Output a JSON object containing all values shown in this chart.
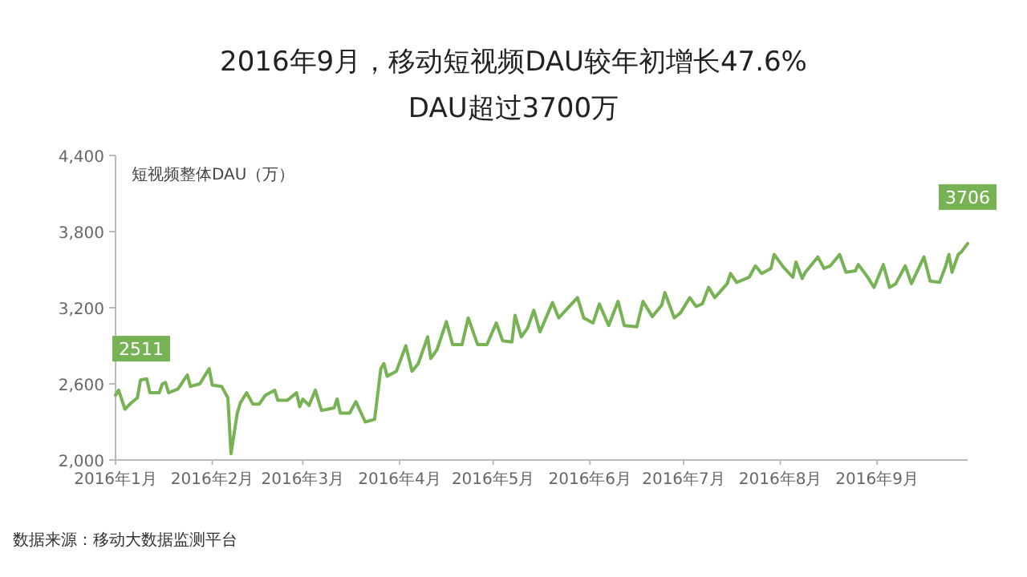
{
  "chart_data": {
    "type": "line",
    "title": "2016年9月，移动短视频DAU较年初增长47.6%",
    "subtitle": "DAU超过3700万",
    "ylabel": "短视频整体DAU（万）",
    "annotations": [
      "数据来源：移动大数据监测平台"
    ],
    "xlim": [
      "2016-01-01",
      "2016-09-30"
    ],
    "xticks": [
      {
        "value": "2016-01-01",
        "label": "2016年1月"
      },
      {
        "value": "2016-02-01",
        "label": "2016年2月"
      },
      {
        "value": "2016-03-01",
        "label": "2016年3月"
      },
      {
        "value": "2016-04-01",
        "label": "2016年4月"
      },
      {
        "value": "2016-05-01",
        "label": "2016年5月"
      },
      {
        "value": "2016-06-01",
        "label": "2016年6月"
      },
      {
        "value": "2016-07-01",
        "label": "2016年7月"
      },
      {
        "value": "2016-08-01",
        "label": "2016年8月"
      },
      {
        "value": "2016-09-01",
        "label": "2016年9月"
      }
    ],
    "ylim": [
      2000,
      4400
    ],
    "yticks": [
      {
        "value": 2000,
        "label": "2,000"
      },
      {
        "value": 2600,
        "label": "2,600"
      },
      {
        "value": 3200,
        "label": "3,200"
      },
      {
        "value": 3800,
        "label": "3,800"
      },
      {
        "value": 4400,
        "label": "4,400"
      }
    ],
    "grid": false,
    "marker": "none",
    "line_style": "solid",
    "series": [
      {
        "color": "#77b255",
        "x": [
          "2016-01-01",
          "2016-01-02",
          "2016-01-04",
          "2016-01-06",
          "2016-01-08",
          "2016-01-09",
          "2016-01-11",
          "2016-01-12",
          "2016-01-15",
          "2016-01-16",
          "2016-01-17",
          "2016-01-18",
          "2016-01-21",
          "2016-01-24",
          "2016-01-25",
          "2016-01-28",
          "2016-01-31",
          "2016-02-01",
          "2016-02-04",
          "2016-02-06",
          "2016-02-07",
          "2016-02-09",
          "2016-02-10",
          "2016-02-12",
          "2016-02-14",
          "2016-02-16",
          "2016-02-18",
          "2016-02-21",
          "2016-02-22",
          "2016-02-25",
          "2016-02-28",
          "2016-02-29",
          "2016-03-01",
          "2016-03-03",
          "2016-03-05",
          "2016-03-07",
          "2016-03-11",
          "2016-03-12",
          "2016-03-13",
          "2016-03-16",
          "2016-03-18",
          "2016-03-21",
          "2016-03-24",
          "2016-03-26",
          "2016-03-27",
          "2016-03-28",
          "2016-03-31",
          "2016-04-03",
          "2016-04-05",
          "2016-04-07",
          "2016-04-10",
          "2016-04-11",
          "2016-04-13",
          "2016-04-16",
          "2016-04-18",
          "2016-04-21",
          "2016-04-23",
          "2016-04-26",
          "2016-04-29",
          "2016-05-02",
          "2016-05-04",
          "2016-05-07",
          "2016-05-08",
          "2016-05-10",
          "2016-05-12",
          "2016-05-14",
          "2016-05-16",
          "2016-05-20",
          "2016-05-22",
          "2016-05-28",
          "2016-05-30",
          "2016-06-02",
          "2016-06-04",
          "2016-06-07",
          "2016-06-10",
          "2016-06-12",
          "2016-06-16",
          "2016-06-18",
          "2016-06-21",
          "2016-06-24",
          "2016-06-25",
          "2016-06-28",
          "2016-06-30",
          "2016-07-03",
          "2016-07-05",
          "2016-07-07",
          "2016-07-09",
          "2016-07-11",
          "2016-07-15",
          "2016-07-16",
          "2016-07-18",
          "2016-07-22",
          "2016-07-24",
          "2016-07-26",
          "2016-07-29",
          "2016-07-30",
          "2016-08-02",
          "2016-08-05",
          "2016-08-06",
          "2016-08-08",
          "2016-08-09",
          "2016-08-13",
          "2016-08-15",
          "2016-08-17",
          "2016-08-20",
          "2016-08-22",
          "2016-08-25",
          "2016-08-26",
          "2016-08-29",
          "2016-08-31",
          "2016-09-03",
          "2016-09-05",
          "2016-09-07",
          "2016-09-10",
          "2016-09-12",
          "2016-09-16",
          "2016-09-18",
          "2016-09-21",
          "2016-09-23",
          "2016-09-24",
          "2016-09-25",
          "2016-09-27",
          "2016-09-28",
          "2016-09-30"
        ],
        "values": [
          2511,
          2550,
          2400,
          2450,
          2490,
          2630,
          2640,
          2530,
          2530,
          2600,
          2610,
          2530,
          2560,
          2670,
          2580,
          2600,
          2720,
          2590,
          2580,
          2490,
          2050,
          2370,
          2450,
          2530,
          2440,
          2440,
          2510,
          2550,
          2470,
          2470,
          2530,
          2420,
          2480,
          2430,
          2550,
          2390,
          2410,
          2480,
          2370,
          2370,
          2460,
          2300,
          2320,
          2720,
          2760,
          2660,
          2700,
          2900,
          2700,
          2760,
          2970,
          2800,
          2870,
          3090,
          2910,
          2910,
          3120,
          2910,
          2910,
          3080,
          2940,
          2930,
          3140,
          2970,
          3040,
          3180,
          3010,
          3240,
          3120,
          3280,
          3120,
          3080,
          3230,
          3060,
          3250,
          3060,
          3050,
          3250,
          3130,
          3220,
          3320,
          3120,
          3160,
          3280,
          3210,
          3230,
          3360,
          3280,
          3390,
          3470,
          3400,
          3440,
          3530,
          3470,
          3510,
          3620,
          3520,
          3440,
          3560,
          3430,
          3480,
          3600,
          3510,
          3530,
          3620,
          3480,
          3490,
          3540,
          3440,
          3360,
          3540,
          3360,
          3390,
          3530,
          3390,
          3600,
          3410,
          3400,
          3530,
          3620,
          3480,
          3620,
          3640,
          3706
        ],
        "value_labels": [
          "2511",
          null,
          null,
          null,
          null,
          null,
          null,
          null,
          null,
          null,
          null,
          null,
          null,
          null,
          null,
          null,
          null,
          null,
          null,
          null,
          null,
          null,
          null,
          null,
          null,
          null,
          null,
          null,
          null,
          null,
          null,
          null,
          null,
          null,
          null,
          null,
          null,
          null,
          null,
          null,
          null,
          null,
          null,
          null,
          null,
          null,
          null,
          null,
          null,
          null,
          null,
          null,
          null,
          null,
          null,
          null,
          null,
          null,
          null,
          null,
          null,
          null,
          null,
          null,
          null,
          null,
          null,
          null,
          null,
          null,
          null,
          null,
          null,
          null,
          null,
          null,
          null,
          null,
          null,
          null,
          null,
          null,
          null,
          null,
          null,
          null,
          null,
          null,
          null,
          null,
          null,
          null,
          null,
          null,
          null,
          null,
          null,
          null,
          null,
          null,
          null,
          null,
          null,
          null,
          null,
          null,
          null,
          null,
          null,
          null,
          null,
          null,
          null,
          null,
          null,
          null,
          null,
          null,
          null,
          null,
          null,
          null,
          null,
          "3706"
        ]
      }
    ]
  }
}
